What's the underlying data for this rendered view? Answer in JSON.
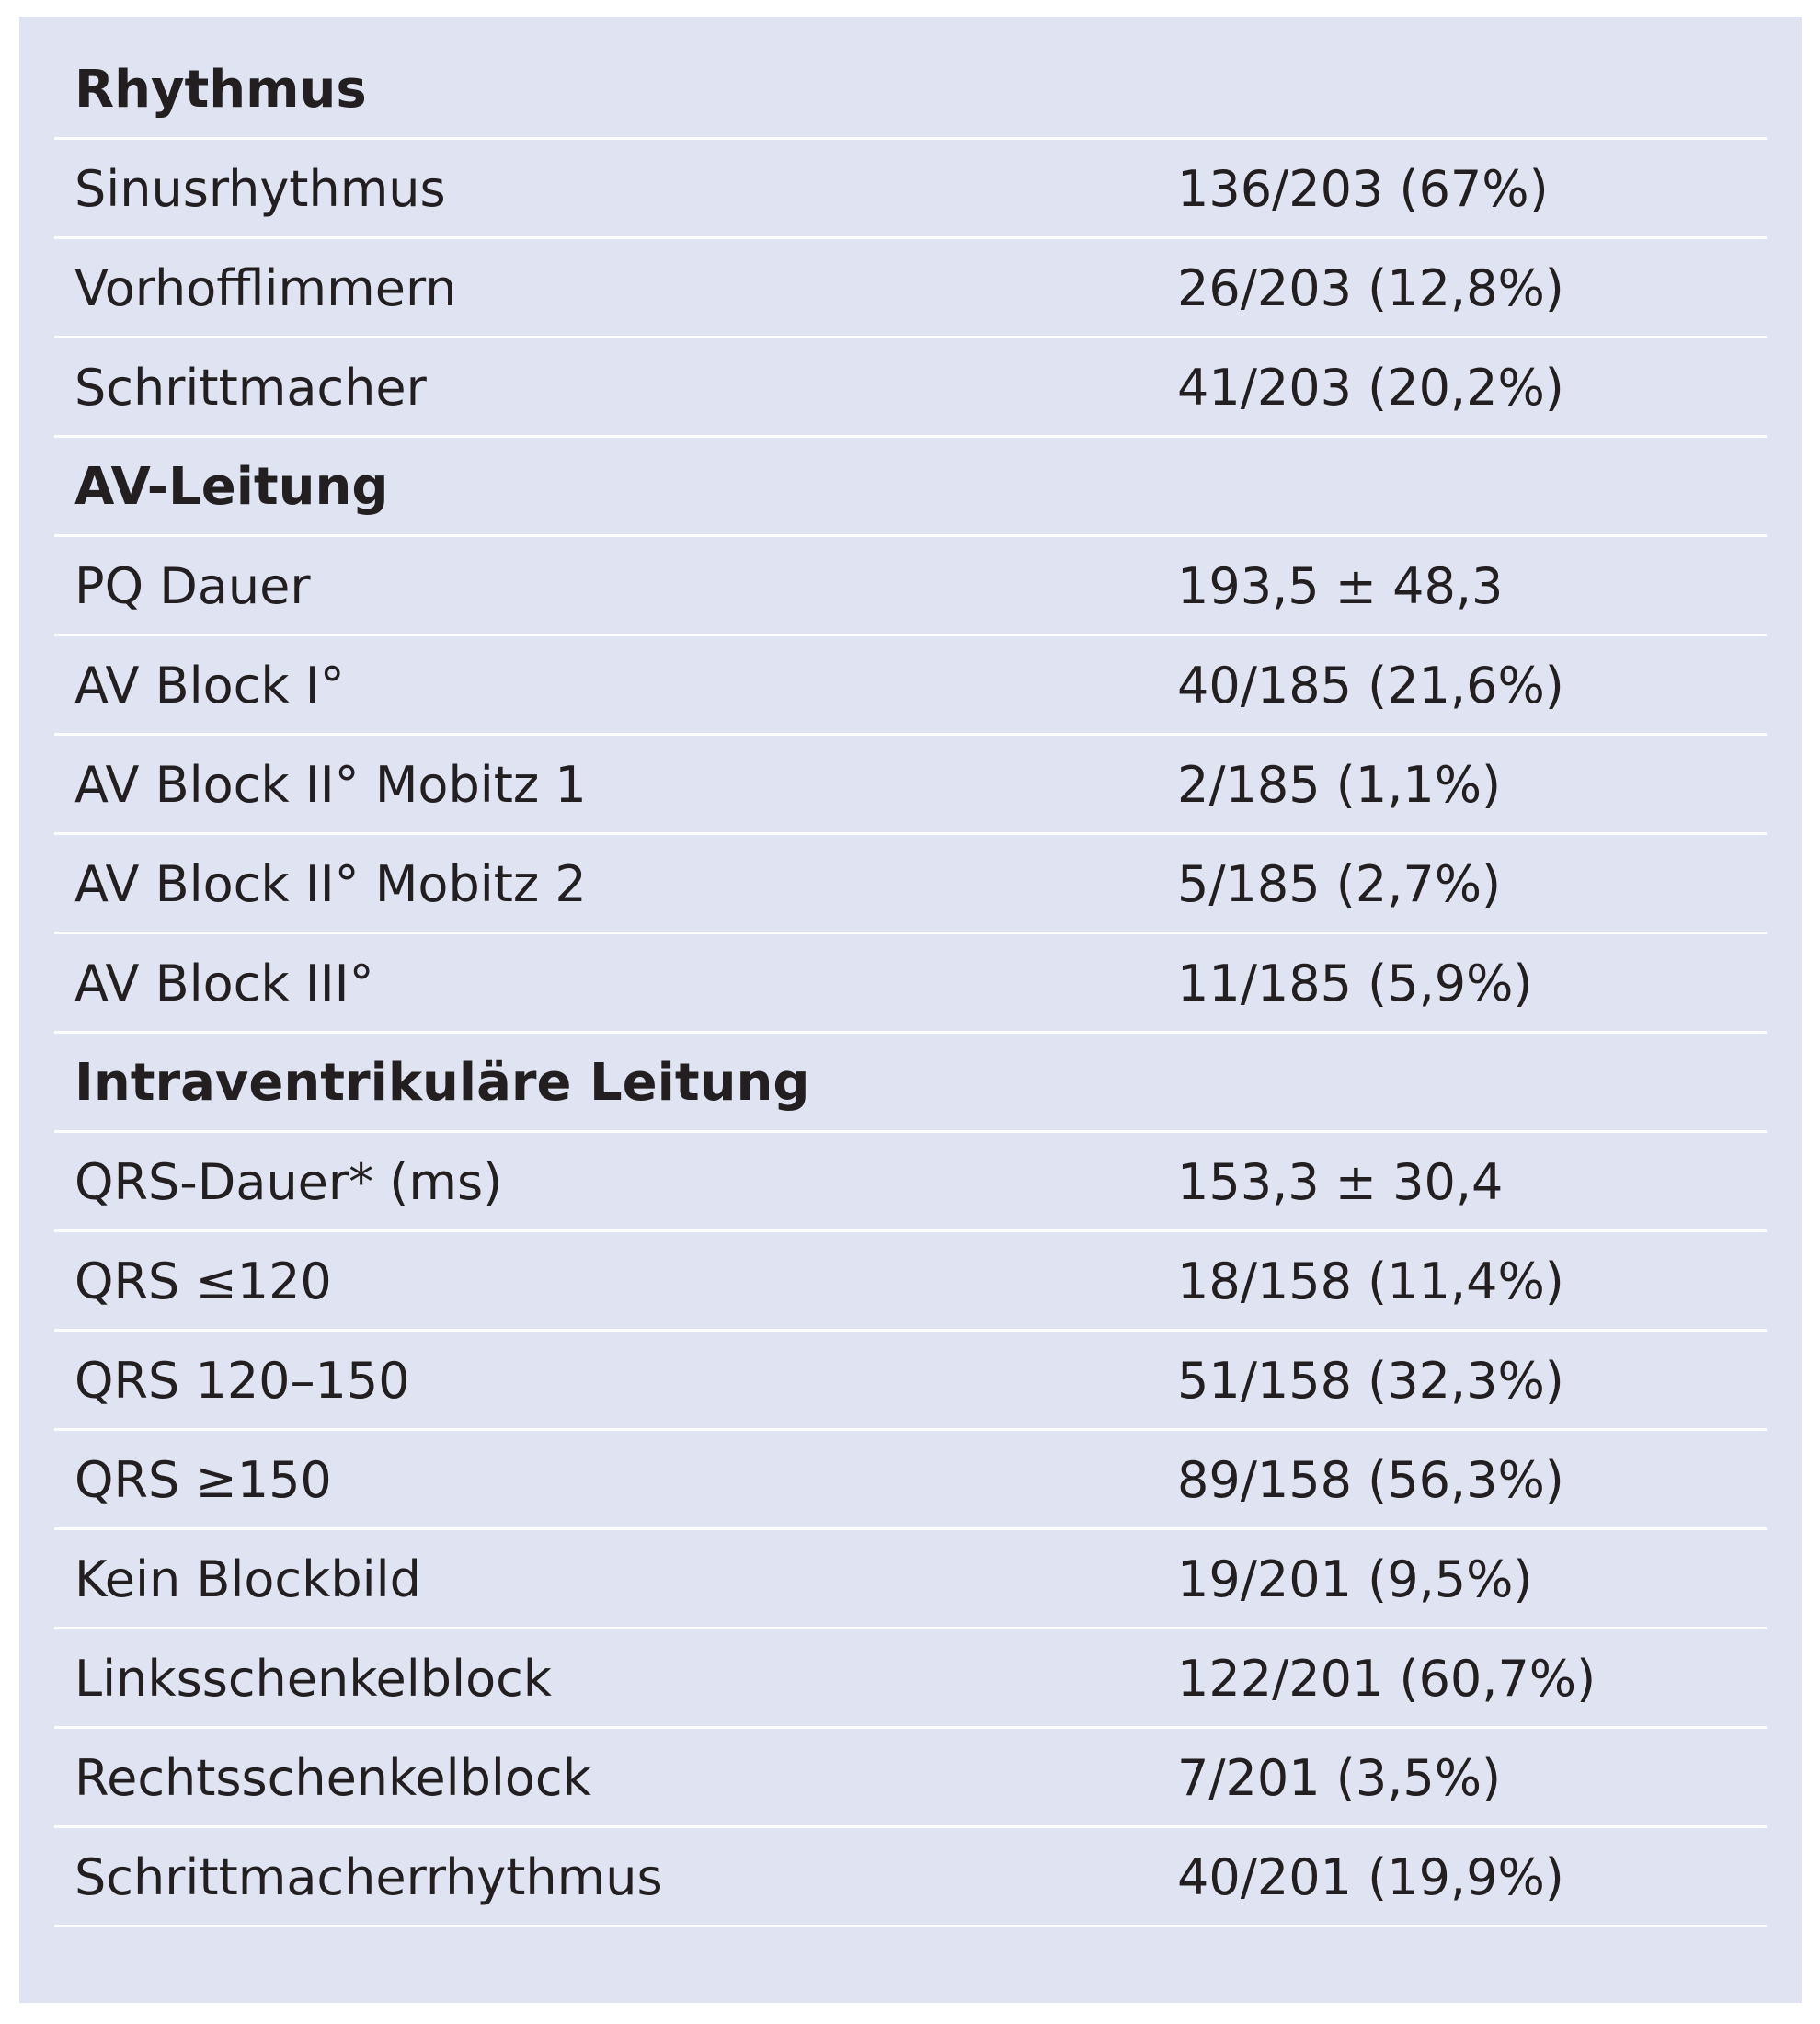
{
  "table": {
    "sections": [
      {
        "heading": "Rhythmus",
        "rows": [
          {
            "label": "Sinusrhythmus",
            "value": "136/203 (67%)"
          },
          {
            "label": "Vorhofflimmern",
            "value": "26/203 (12,8%)"
          },
          {
            "label": "Schrittmacher",
            "value": "41/203 (20,2%)"
          }
        ]
      },
      {
        "heading": "AV-Leitung",
        "rows": [
          {
            "label": "PQ Dauer",
            "value": "193,5 ± 48,3"
          },
          {
            "label": "AV Block I°",
            "value": "40/185 (21,6%)"
          },
          {
            "label": "AV Block II° Mobitz 1",
            "value": "2/185 (1,1%)"
          },
          {
            "label": "AV Block II° Mobitz 2",
            "value": "5/185 (2,7%)"
          },
          {
            "label": "AV Block III°",
            "value": "11/185 (5,9%)"
          }
        ]
      },
      {
        "heading": "Intraventrikuläre Leitung",
        "rows": [
          {
            "label": "QRS-Dauer* (ms)",
            "value": "153,3 ± 30,4"
          },
          {
            "label": "QRS ≤120",
            "value": "18/158 (11,4%)"
          },
          {
            "label": "QRS 120–150",
            "value": "51/158 (32,3%)"
          },
          {
            "label": "QRS ≥150",
            "value": "89/158 (56,3%)"
          },
          {
            "label": "Kein Blockbild",
            "value": "19/201 (9,5%)"
          },
          {
            "label": "Linksschenkelblock",
            "value": "122/201 (60,7%)"
          },
          {
            "label": "Rechtsschenkelblock",
            "value": "7/201 (3,5%)"
          },
          {
            "label": "Schrittmacherrhythmus",
            "value": "40/201 (19,9%)"
          }
        ]
      }
    ]
  }
}
